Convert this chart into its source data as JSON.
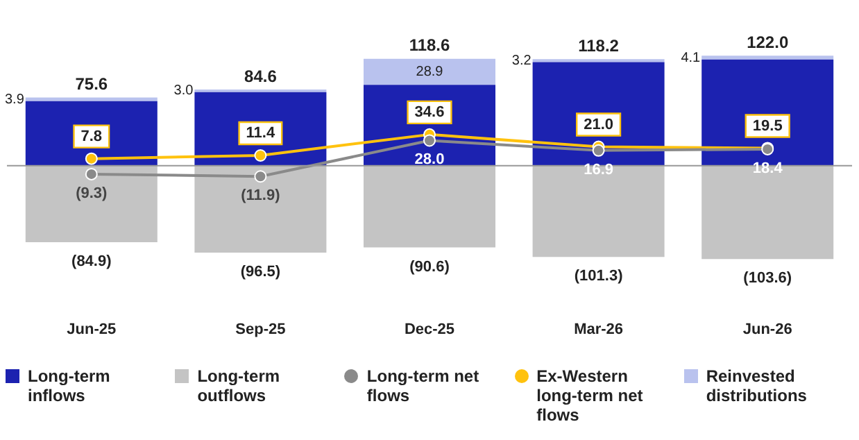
{
  "chart_data": {
    "type": "bar",
    "stacked": true,
    "categories": [
      "Jun-25",
      "Sep-25",
      "Dec-25",
      "Mar-26",
      "Jun-26"
    ],
    "series": [
      {
        "name": "Long-term inflows",
        "color": "#1c22b0",
        "values": [
          71.7,
          81.6,
          89.7,
          115.0,
          117.9
        ]
      },
      {
        "name": "Reinvested distributions",
        "color": "#b9c2ee",
        "values": [
          3.9,
          3.0,
          28.9,
          3.2,
          4.1
        ],
        "value_labels": [
          "3.9",
          "3.0",
          "28.9",
          "3.2",
          "4.1"
        ]
      },
      {
        "name": "Long-term outflows",
        "color": "#c4c4c4",
        "values": [
          -84.9,
          -96.5,
          -90.6,
          -101.3,
          -103.6
        ],
        "value_labels": [
          "(84.9)",
          "(96.5)",
          "(90.6)",
          "(101.3)",
          "(103.6)"
        ]
      },
      {
        "name": "Long-term net flows",
        "type": "line",
        "color": "#8a8a8a",
        "values": [
          -9.3,
          -11.9,
          28.0,
          16.9,
          18.4
        ],
        "value_labels": [
          "(9.3)",
          "(11.9)",
          "28.0",
          "16.9",
          "18.4"
        ]
      },
      {
        "name": "Ex-Western long-term net flows",
        "type": "line",
        "color": "#ffc20e",
        "values": [
          7.8,
          11.4,
          34.6,
          21.0,
          19.5
        ],
        "value_labels": [
          "7.8",
          "11.4",
          "34.6",
          "21.0",
          "19.5"
        ]
      }
    ],
    "annotations": [
      {
        "text": "75.6",
        "x": "Jun-25",
        "y": 75.6
      },
      {
        "text": "84.6",
        "x": "Sep-25",
        "y": 84.6
      },
      {
        "text": "118.6",
        "x": "Dec-25",
        "y": 118.6
      },
      {
        "text": "118.2",
        "x": "Mar-26",
        "y": 118.2
      },
      {
        "text": "122.0",
        "x": "Jun-26",
        "y": 122.0
      }
    ],
    "marker": "circle",
    "grid": false,
    "tick_labels": "x",
    "legend": "bottom"
  }
}
